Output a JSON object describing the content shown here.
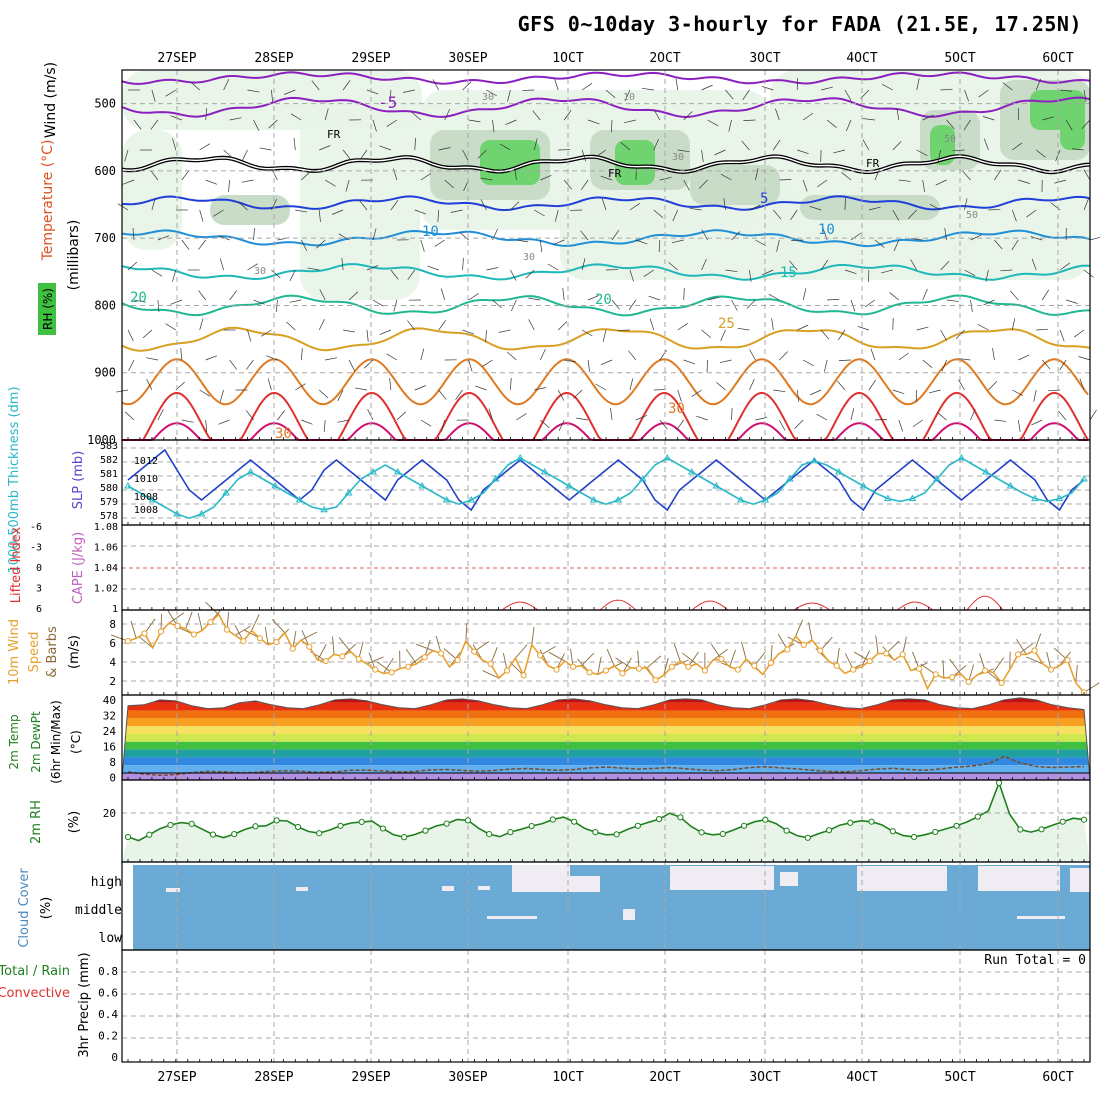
{
  "title": "GFS 0~10day 3-hourly for FADA (21.5E, 17.25N)",
  "dates": [
    "27SEP",
    "28SEP",
    "29SEP",
    "30SEP",
    "1OCT",
    "2OCT",
    "3OCT",
    "4OCT",
    "5OCT",
    "6OCT"
  ],
  "run_total": "Run Total = 0",
  "colors": {
    "rh_fill": "#e8f4e8",
    "rh_mid": "#c8dcc8",
    "rh_dark": "#a0b8a0",
    "rh_green": "#6fd36f",
    "slp": "#1f3fc8",
    "thickness": "#2ab8c8",
    "li": "#e03030",
    "cape": "#c060c0",
    "wind_speed": "#e8a030",
    "barb": "#8b6b3a",
    "rh2m": "#208020",
    "cloud": "#6aaad4",
    "dew": "#7a4a2a"
  },
  "chart_data": [
    {
      "type": "line",
      "panel": "meteogram-profile",
      "ylabel_temp": "Temperature (°C)",
      "ylabel_wind": "Wind (m/s)",
      "ylabel_p": "(millibars)",
      "ylabel_rh": "RH (%)",
      "yticks": [
        "500",
        "600",
        "700",
        "800",
        "900",
        "1000"
      ],
      "ylim": [
        450,
        1000
      ],
      "labels": {
        "minus5": "-5",
        "fr1": "FR",
        "fr2": "FR",
        "fr3": "FR",
        "t5": "5",
        "t10a": "10",
        "t10b": "10",
        "t15": "15",
        "t20a": "20",
        "t20b": "20",
        "t25": "25",
        "t30a": "30",
        "t30b": "30",
        "rh30a": "30",
        "rh30b": "30",
        "rh30c": "30",
        "rh30d": "30",
        "rh50a": "50",
        "rh50b": "50",
        "rh10": "10"
      },
      "isotherms": [
        {
          "name": "-5",
          "color": "#8b1fbf",
          "base": 505
        },
        {
          "name": "-5b",
          "color": "#8b1fbf",
          "base": 462
        },
        {
          "name": "FR",
          "color": "#000000",
          "base": 590
        },
        {
          "name": "5",
          "color": "#1f3fd8",
          "base": 648
        },
        {
          "name": "10",
          "color": "#1f8fd8",
          "base": 700
        },
        {
          "name": "15",
          "color": "#1fb8b8",
          "base": 750
        },
        {
          "name": "20",
          "color": "#1fb890",
          "base": 800
        },
        {
          "name": "25",
          "color": "#d8a020",
          "base": 850
        }
      ]
    },
    {
      "type": "line",
      "panel": "slp-thickness",
      "ylabel_left": "1000-500mb Thickness (dm)",
      "ylabel_right": "SLP (mb)",
      "yticks_left": [
        "583",
        "582",
        "581",
        "580",
        "579",
        "578"
      ],
      "yticks_right": [
        "1012",
        "1010",
        "1008",
        "1008"
      ],
      "series": [
        {
          "name": "SLP",
          "values": [
            1010,
            1011,
            1012,
            1013,
            1011,
            1009,
            1008,
            1009,
            1010,
            1011,
            1012,
            1011,
            1010,
            1009,
            1008,
            1009,
            1011,
            1012,
            1011,
            1010,
            1009,
            1008,
            1010,
            1011,
            1012,
            1011,
            1010,
            1008,
            1007,
            1009,
            1010,
            1011,
            1012,
            1011,
            1010,
            1009,
            1008,
            1009,
            1010,
            1011,
            1012,
            1011,
            1010,
            1008,
            1007,
            1009,
            1010,
            1011,
            1012,
            1011,
            1010,
            1009,
            1008,
            1009,
            1010,
            1011,
            1012,
            1011,
            1010,
            1008,
            1007,
            1009,
            1010,
            1011,
            1012,
            1011,
            1010,
            1009,
            1008,
            1009,
            1010,
            1011,
            1012,
            1011,
            1010,
            1008,
            1007,
            1009,
            1010
          ]
        },
        {
          "name": "Thickness",
          "values": [
            580.5,
            580,
            579.5,
            579,
            578.5,
            578.2,
            578.5,
            579,
            580,
            581,
            581.5,
            581,
            580.5,
            580,
            579.5,
            579,
            578.8,
            579,
            580,
            581,
            581.5,
            582,
            581.5,
            581,
            580.5,
            580,
            579.5,
            579.2,
            579.5,
            580,
            581,
            582,
            582.5,
            582,
            581.5,
            581,
            580.5,
            580,
            579.5,
            579.2,
            579.5,
            580,
            581,
            582,
            582.5,
            582,
            581.5,
            581,
            580.5,
            580,
            579.5,
            579.2,
            579.5,
            580,
            581,
            582,
            582.3,
            582,
            581.5,
            581,
            580.5,
            580,
            579.6,
            579.4,
            579.6,
            580,
            581,
            582,
            582.5,
            582,
            581.5,
            581,
            580.5,
            580,
            579.6,
            579.4,
            579.6,
            580,
            581
          ]
        }
      ]
    },
    {
      "type": "line",
      "panel": "stability",
      "ylabel_left": "Lifted Index",
      "ylabel_right": "CAPE (J/kg)",
      "yticks_left": [
        "-6",
        "-3",
        "0",
        "3",
        "6"
      ],
      "yticks_right": [
        "1.08",
        "1.06",
        "1.04",
        "1.02",
        "1"
      ]
    },
    {
      "type": "line",
      "panel": "10m-wind",
      "ylabel": "10m Wind Speed & Barbs (m/s)",
      "ylabel_a": "10m Wind",
      "ylabel_b": "Speed",
      "ylabel_c": "& Barbs",
      "ylabel_unit": "(m/s)",
      "yticks": [
        "8",
        "6",
        "4",
        "2"
      ],
      "ylim": [
        0,
        9
      ],
      "values": [
        6.2,
        6.5,
        7,
        5.5,
        7.2,
        8.1,
        7.8,
        7.5,
        6.9,
        7.3,
        8.2,
        9,
        7.4,
        6.8,
        6.2,
        7.3,
        6.5,
        5.8,
        6.1,
        7.1,
        5.4,
        6.3,
        5.6,
        4.2,
        4.1,
        4.8,
        4.6,
        5.1,
        4.3,
        3.8,
        3.2,
        2.8,
        2.9,
        3.3,
        3.5,
        3.8,
        4.5,
        5.2,
        4.9,
        3.5,
        4.2,
        6.2,
        5.1,
        4.2,
        3.8,
        2.3,
        3.1,
        4.4,
        2.6,
        5.8,
        4.7,
        3.6,
        3.2,
        4.1,
        3.5,
        3.6,
        2.9,
        2.7,
        3.1,
        3.6,
        2.8,
        3.4,
        3.3,
        3.4,
        2.1,
        2.6,
        3.5,
        4.1,
        3.5,
        3.8,
        3.1,
        4.2,
        4.3,
        3.5,
        3.2,
        4.3,
        3.6,
        2.7,
        3.9,
        4.9,
        5.3,
        6.7,
        5.8,
        6.3,
        5.2,
        4.1,
        3.6,
        2.8,
        3.2,
        3.5,
        4.1,
        4.9,
        4.9,
        4.2,
        4.8,
        3.1,
        3.3,
        1.2,
        2.7,
        2.3,
        2.4,
        2.8,
        1.9,
        2.6,
        3.1,
        2.9,
        1.8,
        3.2,
        4.8,
        4.8,
        5.2,
        3.8,
        3.2,
        3.6,
        4.2,
        1.8,
        0.8
      ]
    },
    {
      "type": "area",
      "panel": "2m-temp",
      "ylabel_a": "2m Temp",
      "ylabel_b": "2m DewPt",
      "ylabel_c": "(6hr Min/Max)",
      "ylabel_unit": "(°C)",
      "yticks": [
        "40",
        "32",
        "24",
        "16",
        "8",
        "0"
      ],
      "ylim": [
        -4,
        42
      ],
      "temp_max": [
        34.5,
        35,
        37.5,
        37,
        34.5,
        33,
        33.5,
        36,
        37,
        35,
        33.5,
        33,
        35,
        37.5,
        38,
        37,
        35,
        33.5,
        33,
        35,
        37.5,
        38,
        37,
        35,
        33.5,
        33,
        35,
        37.5,
        38,
        37,
        35,
        33.5,
        33,
        35,
        37.5,
        38,
        37.5,
        35,
        33.5,
        33,
        35,
        37.5,
        38,
        37,
        35,
        33.5,
        33,
        35,
        37.5,
        38,
        37.5,
        35,
        33.5,
        33,
        35,
        37.5,
        38.5,
        37.5,
        35,
        33.5,
        32.5
      ],
      "dew": [
        0.5,
        -0.5,
        -1.2,
        -0.8,
        0.2,
        0.8,
        0.6,
        0.1,
        0.3,
        0.9,
        1.2,
        0.8,
        0.3,
        0.6,
        1.4,
        1.5,
        1,
        0.5,
        0.8,
        1.6,
        1.8,
        1.3,
        0.9,
        1.3,
        2,
        2.3,
        1.8,
        1.4,
        1.8,
        2.6,
        3,
        2.5,
        2,
        2.3,
        2.8,
        2.2,
        1.6,
        1.2,
        1.8,
        2.8,
        3.2,
        2.6,
        2.1,
        1.4,
        0.8,
        0.6,
        1.2,
        2,
        2.4,
        1.8,
        1.4,
        2.1,
        3,
        3.6,
        4.8,
        8.5,
        5.2,
        3.4,
        2.8,
        3.1,
        3.3
      ]
    },
    {
      "type": "area",
      "panel": "2m-rh",
      "ylabel": "2m RH",
      "ylabel_unit": "(%)",
      "yticks": [
        "20"
      ],
      "ylim": [
        0,
        36
      ],
      "values": [
        9.2,
        7.5,
        10.2,
        13,
        14.7,
        15.8,
        15.2,
        12.7,
        10.3,
        8.9,
        10.5,
        12.6,
        14.1,
        14.3,
        16.8,
        16.5,
        13.8,
        11.7,
        10.9,
        12.4,
        14.3,
        15.6,
        16.1,
        16.4,
        13.1,
        10.2,
        9.1,
        10.3,
        12.1,
        14.2,
        15.3,
        17.2,
        16.8,
        13.2,
        10.5,
        9.3,
        11.4,
        12.7,
        14.2,
        15.3,
        17.2,
        18.3,
        16.2,
        13.1,
        11.4,
        10.2,
        10.4,
        12.6,
        14.3,
        15.9,
        17.4,
        20.1,
        18.2,
        14.1,
        11.3,
        10.2,
        10.6,
        12.4,
        14.3,
        16.2,
        17.1,
        15.3,
        12.1,
        9.8,
        8.8,
        10.7,
        12.3,
        14.6,
        15.7,
        16.6,
        16.2,
        14.7,
        11.8,
        9.8,
        9.2,
        10.2,
        11.5,
        12.9,
        14.3,
        16.1,
        18.5,
        21.2,
        34,
        19.7,
        12.6,
        11.4,
        12.7,
        14.5,
        16.2,
        17.8,
        17.1
      ]
    },
    {
      "type": "area",
      "panel": "cloud-cover",
      "ylabel": "Cloud Cover (%)",
      "ylabel_a": "Cloud Cover",
      "ylabel_unit": "(%)",
      "yticks": [
        "high",
        "middle",
        "low"
      ]
    },
    {
      "type": "line",
      "panel": "precip",
      "ylabel_a": "Total / Rain",
      "ylabel_b": "Convective",
      "ylabel_unit": "3hr Precip (mm)",
      "yticks": [
        "0.8",
        "0.6",
        "0.4",
        "0.2",
        "0"
      ],
      "ylim": [
        0,
        1
      ],
      "values": [
        0,
        0,
        0,
        0,
        0,
        0,
        0,
        0,
        0,
        0
      ]
    }
  ]
}
